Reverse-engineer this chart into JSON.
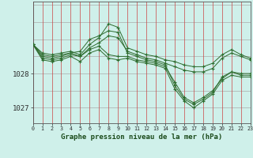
{
  "background_color": "#cff0ea",
  "plot_bg_color": "#cff0ea",
  "line_color": "#2d6b2d",
  "marker_color": "#2d6b2d",
  "title": "Graphe pression niveau de la mer (hPa)",
  "yticks": [
    1027,
    1028
  ],
  "ylim": [
    1026.55,
    1030.1
  ],
  "xlim": [
    0,
    23
  ],
  "series": [
    [
      1028.85,
      1028.6,
      1028.55,
      1028.6,
      1028.65,
      1028.55,
      1028.85,
      1029.05,
      1029.45,
      1029.35,
      1028.75,
      1028.65,
      1028.55,
      1028.5,
      1028.4,
      1028.35,
      1028.25,
      1028.2,
      1028.2,
      1028.3,
      1028.55,
      1028.7,
      1028.55,
      1028.45
    ],
    [
      1028.85,
      1028.55,
      1028.5,
      1028.55,
      1028.6,
      1028.5,
      1028.75,
      1028.9,
      1029.1,
      1029.05,
      1028.65,
      1028.55,
      1028.45,
      1028.4,
      1028.3,
      1028.2,
      1028.1,
      1028.05,
      1028.05,
      1028.15,
      1028.45,
      1028.6,
      1028.5,
      1028.4
    ],
    [
      1028.85,
      1028.5,
      1028.45,
      1028.5,
      1028.6,
      1028.65,
      1029.0,
      1029.1,
      1029.25,
      1029.2,
      1028.6,
      1028.5,
      1028.4,
      1028.35,
      1028.25,
      1027.65,
      1027.25,
      1027.1,
      1027.25,
      1027.45,
      1027.9,
      1028.05,
      1028.0,
      1028.0
    ],
    [
      1028.85,
      1028.45,
      1028.4,
      1028.45,
      1028.55,
      1028.5,
      1028.7,
      1028.8,
      1028.55,
      1028.5,
      1028.5,
      1028.4,
      1028.35,
      1028.3,
      1028.2,
      1027.75,
      1027.3,
      1027.15,
      1027.3,
      1027.5,
      1027.85,
      1028.05,
      1027.95,
      1027.95
    ],
    [
      1028.85,
      1028.4,
      1028.35,
      1028.4,
      1028.5,
      1028.35,
      1028.6,
      1028.7,
      1028.45,
      1028.4,
      1028.45,
      1028.35,
      1028.3,
      1028.25,
      1028.15,
      1027.55,
      1027.2,
      1027.0,
      1027.2,
      1027.4,
      1027.8,
      1027.95,
      1027.9,
      1027.9
    ]
  ],
  "red_vlines": [
    0,
    1,
    2,
    3,
    4,
    5,
    6,
    7,
    8,
    9,
    10,
    11,
    12,
    13,
    14,
    15,
    16,
    17,
    18,
    19,
    20,
    21,
    22,
    23
  ],
  "gray_hlines": [
    1026.5,
    1027.0,
    1027.5,
    1028.0,
    1028.5,
    1029.0,
    1029.5,
    1030.0
  ]
}
